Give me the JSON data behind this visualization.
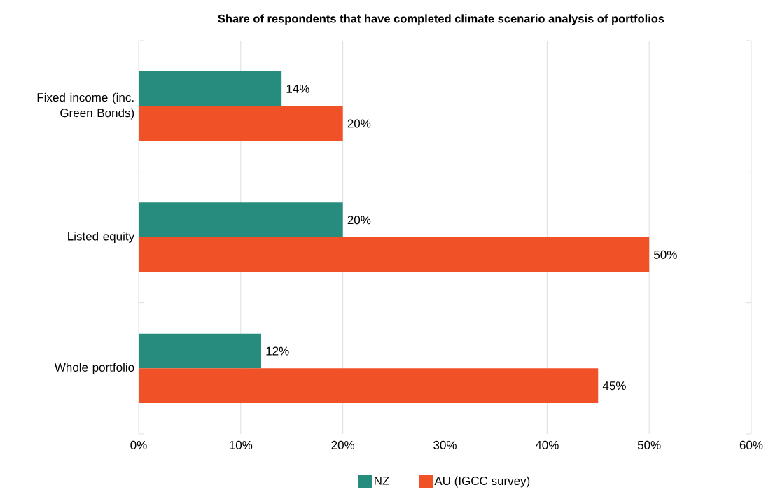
{
  "chart_data": {
    "type": "bar",
    "orientation": "horizontal",
    "title": "Share of respondents that have completed climate scenario analysis of portfolios",
    "categories": [
      "Fixed income (inc. Green Bonds)",
      "Listed equity",
      "Whole portfolio"
    ],
    "series": [
      {
        "name": "NZ",
        "color": "#268c7e",
        "values": [
          14,
          20,
          12
        ],
        "value_labels": [
          "14%",
          "20%",
          "12%"
        ]
      },
      {
        "name": "AU (IGCC survey)",
        "color": "#f05126",
        "values": [
          20,
          50,
          45
        ],
        "value_labels": [
          "20%",
          "50%",
          "45%"
        ]
      }
    ],
    "xlim": [
      0,
      60
    ],
    "xticks": [
      {
        "value": 0,
        "label": "0%"
      },
      {
        "value": 10,
        "label": "10%"
      },
      {
        "value": 20,
        "label": "20%"
      },
      {
        "value": 30,
        "label": "30%"
      },
      {
        "value": 40,
        "label": "40%"
      },
      {
        "value": 50,
        "label": "50%"
      },
      {
        "value": 60,
        "label": "60%"
      }
    ],
    "grid": "x",
    "legend": "bottom"
  }
}
